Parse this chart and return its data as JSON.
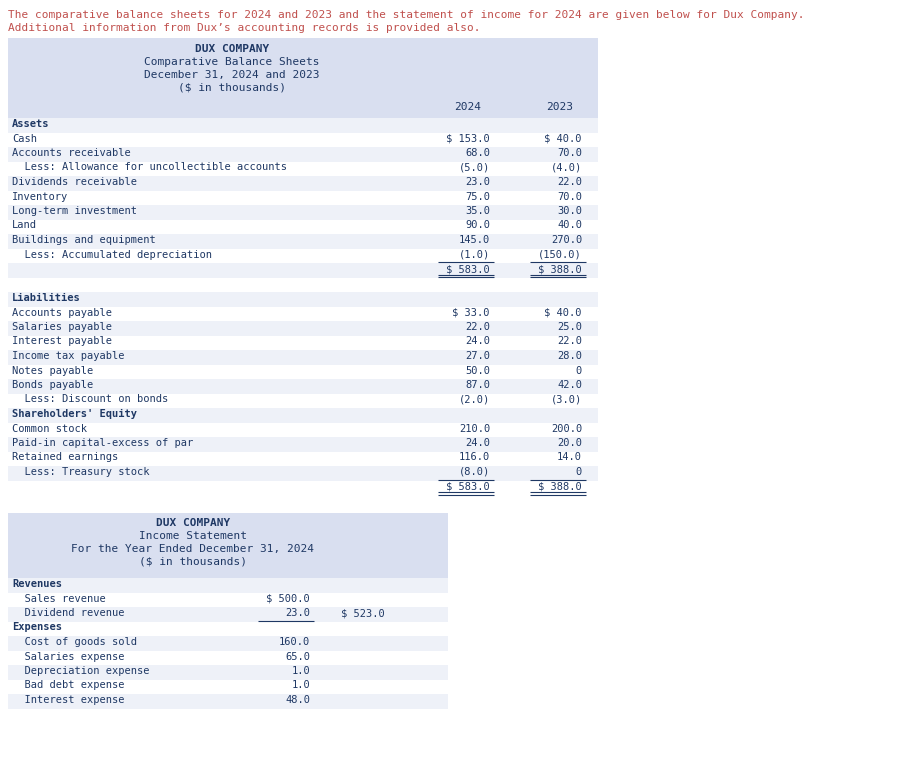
{
  "intro_color": "#c0504d",
  "bg_color": "#ffffff",
  "header_bg": "#d9dff0",
  "row_alt": "#eef1f8",
  "row_white": "#ffffff",
  "font_color": "#1f3864",
  "font_size": 7.5,
  "intro_lines": [
    "The comparative balance sheets for 2024 and 2023 and the statement of income for 2024 are given below for Dux Company.",
    "Additional information from Dux’s accounting records is provided also."
  ],
  "bs_title": [
    "DUX COMPANY",
    "Comparative Balance Sheets",
    "December 31, 2024 and 2023",
    "($ in thousands)"
  ],
  "bs_rows": [
    {
      "label": "Assets",
      "v24": "",
      "v23": "",
      "bold": true,
      "ind": 0,
      "ul": false,
      "dul": false
    },
    {
      "label": "Cash",
      "v24": "$ 153.0",
      "v23": "$ 40.0",
      "bold": false,
      "ind": 0,
      "ul": false,
      "dul": false
    },
    {
      "label": "Accounts receivable",
      "v24": "68.0",
      "v23": "70.0",
      "bold": false,
      "ind": 0,
      "ul": false,
      "dul": false
    },
    {
      "label": "  Less: Allowance for uncollectible accounts",
      "v24": "(5.0)",
      "v23": "(4.0)",
      "bold": false,
      "ind": 0,
      "ul": false,
      "dul": false
    },
    {
      "label": "Dividends receivable",
      "v24": "23.0",
      "v23": "22.0",
      "bold": false,
      "ind": 0,
      "ul": false,
      "dul": false
    },
    {
      "label": "Inventory",
      "v24": "75.0",
      "v23": "70.0",
      "bold": false,
      "ind": 0,
      "ul": false,
      "dul": false
    },
    {
      "label": "Long-term investment",
      "v24": "35.0",
      "v23": "30.0",
      "bold": false,
      "ind": 0,
      "ul": false,
      "dul": false
    },
    {
      "label": "Land",
      "v24": "90.0",
      "v23": "40.0",
      "bold": false,
      "ind": 0,
      "ul": false,
      "dul": false
    },
    {
      "label": "Buildings and equipment",
      "v24": "145.0",
      "v23": "270.0",
      "bold": false,
      "ind": 0,
      "ul": false,
      "dul": false
    },
    {
      "label": "  Less: Accumulated depreciation",
      "v24": "(1.0)",
      "v23": "(150.0)",
      "bold": false,
      "ind": 0,
      "ul": true,
      "dul": false
    },
    {
      "label": "",
      "v24": "$ 583.0",
      "v23": "$ 388.0",
      "bold": false,
      "ind": 0,
      "ul": false,
      "dul": true
    },
    {
      "label": "",
      "v24": "",
      "v23": "",
      "bold": false,
      "ind": 0,
      "ul": false,
      "dul": false
    },
    {
      "label": "Liabilities",
      "v24": "",
      "v23": "",
      "bold": true,
      "ind": 0,
      "ul": false,
      "dul": false
    },
    {
      "label": "Accounts payable",
      "v24": "$ 33.0",
      "v23": "$ 40.0",
      "bold": false,
      "ind": 0,
      "ul": false,
      "dul": false
    },
    {
      "label": "Salaries payable",
      "v24": "22.0",
      "v23": "25.0",
      "bold": false,
      "ind": 0,
      "ul": false,
      "dul": false
    },
    {
      "label": "Interest payable",
      "v24": "24.0",
      "v23": "22.0",
      "bold": false,
      "ind": 0,
      "ul": false,
      "dul": false
    },
    {
      "label": "Income tax payable",
      "v24": "27.0",
      "v23": "28.0",
      "bold": false,
      "ind": 0,
      "ul": false,
      "dul": false
    },
    {
      "label": "Notes payable",
      "v24": "50.0",
      "v23": "0",
      "bold": false,
      "ind": 0,
      "ul": false,
      "dul": false
    },
    {
      "label": "Bonds payable",
      "v24": "87.0",
      "v23": "42.0",
      "bold": false,
      "ind": 0,
      "ul": false,
      "dul": false
    },
    {
      "label": "  Less: Discount on bonds",
      "v24": "(2.0)",
      "v23": "(3.0)",
      "bold": false,
      "ind": 0,
      "ul": false,
      "dul": false
    },
    {
      "label": "Shareholders' Equity",
      "v24": "",
      "v23": "",
      "bold": true,
      "ind": 0,
      "ul": false,
      "dul": false
    },
    {
      "label": "Common stock",
      "v24": "210.0",
      "v23": "200.0",
      "bold": false,
      "ind": 0,
      "ul": false,
      "dul": false
    },
    {
      "label": "Paid-in capital-excess of par",
      "v24": "24.0",
      "v23": "20.0",
      "bold": false,
      "ind": 0,
      "ul": false,
      "dul": false
    },
    {
      "label": "Retained earnings",
      "v24": "116.0",
      "v23": "14.0",
      "bold": false,
      "ind": 0,
      "ul": false,
      "dul": false
    },
    {
      "label": "  Less: Treasury stock",
      "v24": "(8.0)",
      "v23": "0",
      "bold": false,
      "ind": 0,
      "ul": true,
      "dul": false
    },
    {
      "label": "",
      "v24": "$ 583.0",
      "v23": "$ 388.0",
      "bold": false,
      "ind": 0,
      "ul": false,
      "dul": true
    }
  ],
  "is_title": [
    "DUX COMPANY",
    "Income Statement",
    "For the Year Ended December 31, 2024",
    "($ in thousands)"
  ],
  "is_rows": [
    {
      "label": "Revenues",
      "c1": "",
      "c2": "",
      "bold": true,
      "ul1": false
    },
    {
      "label": "  Sales revenue",
      "c1": "$ 500.0",
      "c2": "",
      "bold": false,
      "ul1": false
    },
    {
      "label": "  Dividend revenue",
      "c1": "23.0",
      "c2": "$ 523.0",
      "bold": false,
      "ul1": true
    },
    {
      "label": "Expenses",
      "c1": "",
      "c2": "",
      "bold": true,
      "ul1": false
    },
    {
      "label": "  Cost of goods sold",
      "c1": "160.0",
      "c2": "",
      "bold": false,
      "ul1": false
    },
    {
      "label": "  Salaries expense",
      "c1": "65.0",
      "c2": "",
      "bold": false,
      "ul1": false
    },
    {
      "label": "  Depreciation expense",
      "c1": "1.0",
      "c2": "",
      "bold": false,
      "ul1": false
    },
    {
      "label": "  Bad debt expense",
      "c1": "1.0",
      "c2": "",
      "bold": false,
      "ul1": false
    },
    {
      "label": "  Interest expense",
      "c1": "48.0",
      "c2": "",
      "bold": false,
      "ul1": false
    }
  ]
}
